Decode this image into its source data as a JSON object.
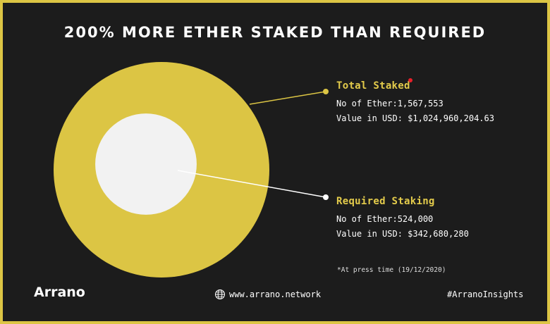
{
  "title": "200% MORE ETHER STAKED THAN REQUIRED",
  "chart_data": {
    "type": "pie",
    "series": [
      {
        "name": "Total Staked",
        "ether": 1567553,
        "usd": 1024960204.63,
        "color": "#dcc544"
      },
      {
        "name": "Required Staking",
        "ether": 524000,
        "usd": 342680280,
        "color": "#f2f2f2"
      }
    ],
    "labels": [
      {
        "title": "Total Staked",
        "line1": "No of Ether:1,567,553",
        "line2": "Value in USD: $1,024,960,204.63"
      },
      {
        "title": "Required Staking",
        "line1": "No of Ether:524,000",
        "line2": "Value in USD: $342,680,280"
      }
    ]
  },
  "note": "*At press time (19/12/2020)",
  "footer": {
    "logo": "Arrano",
    "website": "www.arrano.network",
    "hashtag": "#ArranoInsights"
  },
  "colors": {
    "accent": "#dcc544",
    "background": "#1c1c1c",
    "red_dot": "#e8202a"
  }
}
